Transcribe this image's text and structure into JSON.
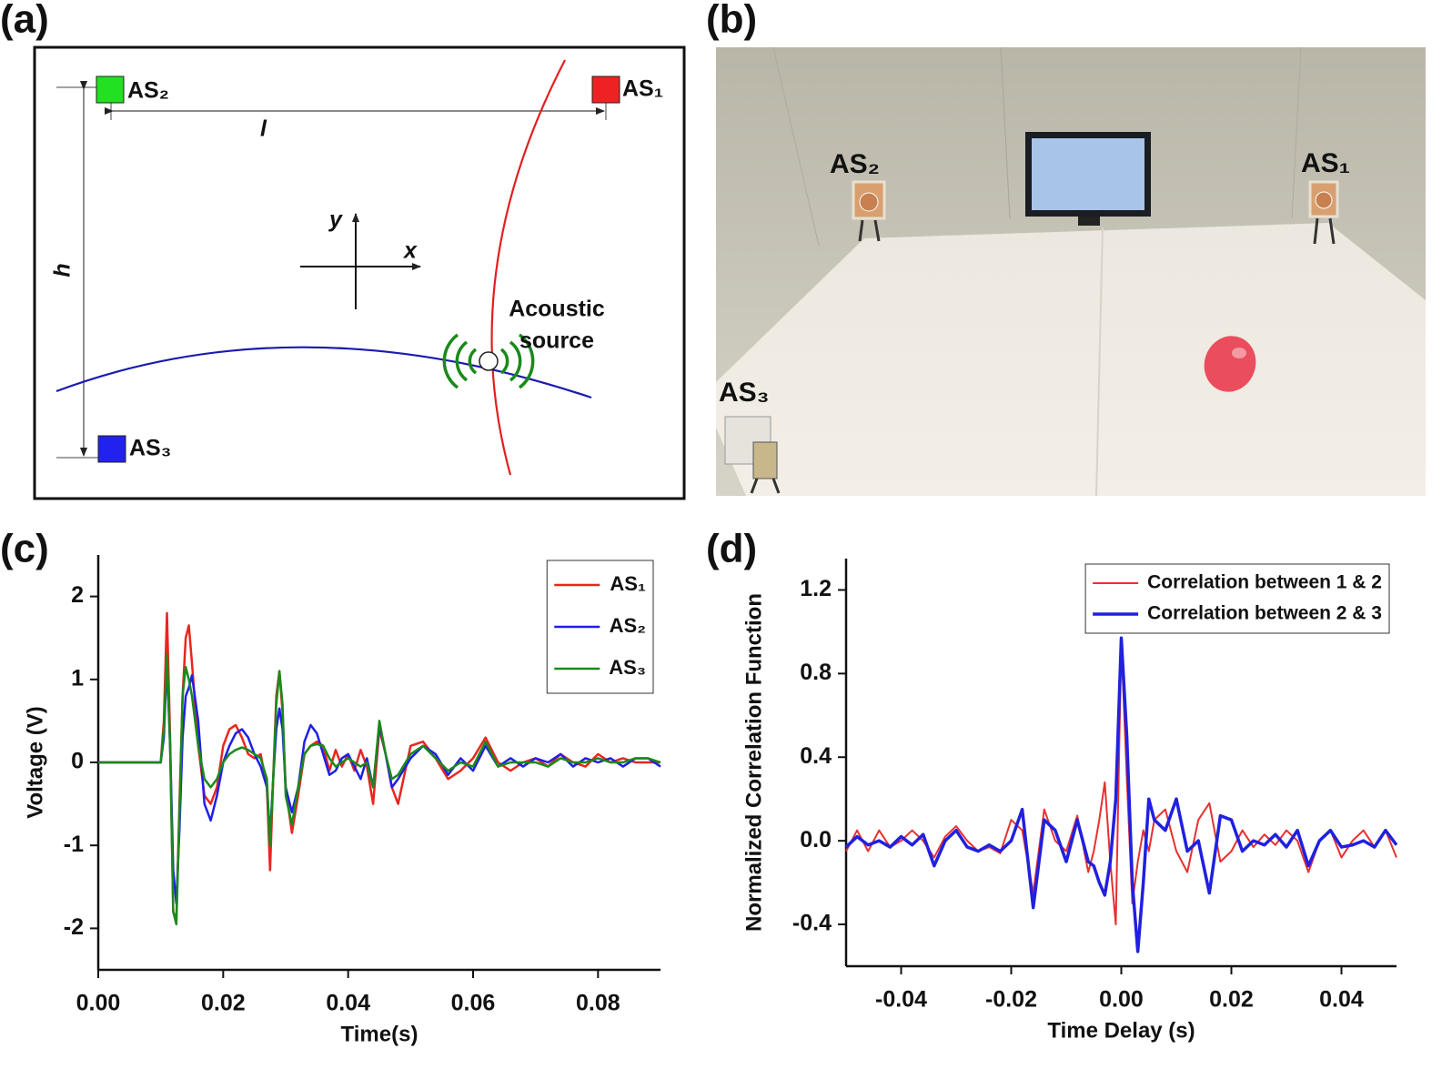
{
  "panel_labels": [
    "(a)",
    "(b)",
    "(c)",
    "(d)"
  ],
  "diagram": {
    "sensor_labels": [
      "AS₁",
      "AS₂",
      "AS₃"
    ],
    "width_label": "l",
    "height_label": "h",
    "y_axis": "y",
    "x_axis": "x",
    "source_label": [
      "Acoustic",
      "source"
    ]
  },
  "photo": {
    "sensor_labels": [
      "AS₁",
      "AS₂",
      "AS₃"
    ]
  },
  "chart_data": [
    {
      "type": "line",
      "xlabel": "Time(s)",
      "ylabel": "Voltage (V)",
      "legend": "upper right",
      "xlim": [
        0,
        0.09
      ],
      "ylim": [
        -2.5,
        2.5
      ],
      "xticks": [
        {
          "value": 0,
          "label": "0.00"
        },
        0.02,
        0.04,
        0.06,
        0.08
      ],
      "yticks": [
        -2,
        -1,
        0,
        1,
        2
      ],
      "x": [
        0,
        0.005,
        0.01,
        0.0105,
        0.011,
        0.0115,
        0.012,
        0.0125,
        0.013,
        0.0135,
        0.014,
        0.0145,
        0.015,
        0.016,
        0.017,
        0.018,
        0.019,
        0.02,
        0.021,
        0.022,
        0.023,
        0.024,
        0.025,
        0.026,
        0.027,
        0.0275,
        0.028,
        0.0285,
        0.029,
        0.0295,
        0.03,
        0.031,
        0.032,
        0.033,
        0.034,
        0.035,
        0.036,
        0.037,
        0.038,
        0.039,
        0.04,
        0.041,
        0.042,
        0.043,
        0.044,
        0.045,
        0.046,
        0.047,
        0.048,
        0.05,
        0.052,
        0.054,
        0.056,
        0.058,
        0.06,
        0.062,
        0.064,
        0.066,
        0.068,
        0.07,
        0.072,
        0.074,
        0.076,
        0.078,
        0.08,
        0.082,
        0.084,
        0.086,
        0.088,
        0.09
      ],
      "series": [
        {
          "name": "AS₁",
          "color": "#e8261f",
          "values": [
            0,
            0,
            0,
            0.5,
            1.8,
            0.3,
            -1.8,
            -1.9,
            -0.5,
            0.8,
            1.5,
            1.65,
            1.2,
            0.2,
            -0.4,
            -0.5,
            -0.3,
            0.2,
            0.4,
            0.45,
            0.3,
            0.1,
            0.05,
            0.1,
            -0.3,
            -1.3,
            -0.2,
            0.8,
            1.1,
            0.6,
            -0.3,
            -0.85,
            -0.4,
            0.1,
            0.2,
            0.25,
            0.2,
            -0.1,
            0.15,
            -0.05,
            0.1,
            -0.1,
            0.15,
            -0.05,
            -0.5,
            0.4,
            0.1,
            -0.3,
            -0.5,
            0.2,
            0.25,
            0.05,
            -0.2,
            -0.1,
            0.05,
            0.3,
            0.0,
            -0.1,
            0.0,
            0.05,
            -0.05,
            0.1,
            0.0,
            -0.05,
            0.1,
            0.0,
            0.05,
            0.0,
            0.0,
            0.0
          ]
        },
        {
          "name": "AS₂",
          "color": "#1f1fe8",
          "values": [
            0,
            0,
            0,
            0.3,
            1.2,
            0.2,
            -1.3,
            -1.7,
            -0.8,
            0.3,
            0.8,
            0.9,
            1.05,
            0.5,
            -0.5,
            -0.7,
            -0.4,
            0.0,
            0.2,
            0.35,
            0.4,
            0.3,
            0.1,
            -0.05,
            -0.3,
            -0.9,
            -0.2,
            0.4,
            0.65,
            0.4,
            -0.3,
            -0.6,
            -0.3,
            0.25,
            0.45,
            0.35,
            0.1,
            -0.15,
            -0.1,
            0.05,
            0.1,
            -0.05,
            -0.2,
            0.05,
            -0.3,
            0.45,
            0.1,
            -0.3,
            -0.2,
            0.05,
            0.2,
            0.1,
            -0.15,
            0.05,
            -0.1,
            0.2,
            -0.05,
            0.05,
            -0.05,
            0.05,
            0.0,
            0.1,
            -0.05,
            0.05,
            0.0,
            0.05,
            -0.05,
            0.05,
            0.05,
            -0.05
          ]
        },
        {
          "name": "AS₃",
          "color": "#1a8a1a",
          "values": [
            0,
            0,
            0,
            0.4,
            1.3,
            0.2,
            -1.8,
            -1.95,
            -0.6,
            0.8,
            1.15,
            1.0,
            0.8,
            0.2,
            -0.2,
            -0.3,
            -0.2,
            0.0,
            0.1,
            0.15,
            0.18,
            0.15,
            0.1,
            0.05,
            -0.2,
            -1.0,
            -0.2,
            0.7,
            1.1,
            0.7,
            -0.4,
            -0.75,
            -0.3,
            0.1,
            0.2,
            0.22,
            0.2,
            0.05,
            -0.05,
            0.0,
            0.05,
            0.0,
            -0.05,
            0.0,
            -0.3,
            0.5,
            0.1,
            -0.2,
            -0.15,
            0.1,
            0.2,
            0.05,
            -0.1,
            0.0,
            -0.05,
            0.25,
            -0.05,
            0.0,
            0.0,
            0.0,
            -0.05,
            0.05,
            0.0,
            0.0,
            0.05,
            0.0,
            0.0,
            0.05,
            0.05,
            0.0
          ]
        }
      ]
    },
    {
      "type": "line",
      "xlabel": "Time Delay (s)",
      "ylabel": "Normalized Correlation Function",
      "legend": "upper right",
      "xlim": [
        -0.05,
        0.05
      ],
      "ylim": [
        -0.6,
        1.35
      ],
      "xticks": [
        -0.04,
        -0.02,
        {
          "value": 0,
          "label": "0.00"
        },
        0.02,
        0.04
      ],
      "yticks": [
        -0.4,
        {
          "value": 0,
          "label": "0.0"
        },
        0.4,
        0.8,
        1.2
      ],
      "x": [
        -0.05,
        -0.048,
        -0.046,
        -0.044,
        -0.042,
        -0.04,
        -0.038,
        -0.036,
        -0.034,
        -0.032,
        -0.03,
        -0.028,
        -0.026,
        -0.024,
        -0.022,
        -0.02,
        -0.018,
        -0.016,
        -0.014,
        -0.012,
        -0.01,
        -0.008,
        -0.006,
        -0.005,
        -0.004,
        -0.003,
        -0.002,
        -0.001,
        0,
        0.001,
        0.002,
        0.003,
        0.004,
        0.005,
        0.006,
        0.008,
        0.01,
        0.012,
        0.014,
        0.016,
        0.018,
        0.02,
        0.022,
        0.024,
        0.026,
        0.028,
        0.03,
        0.032,
        0.034,
        0.036,
        0.038,
        0.04,
        0.042,
        0.044,
        0.046,
        0.048,
        0.05
      ],
      "series": [
        {
          "name": "Correlation between 1 & 2",
          "color": "#e83030",
          "values": [
            -0.05,
            0.05,
            -0.05,
            0.05,
            -0.03,
            0.0,
            0.05,
            0.0,
            -0.08,
            0.02,
            0.07,
            0.0,
            -0.05,
            -0.03,
            -0.06,
            0.1,
            0.05,
            -0.25,
            0.15,
            0.0,
            -0.05,
            0.12,
            -0.15,
            -0.05,
            0.1,
            0.28,
            -0.1,
            -0.4,
            0.95,
            0.3,
            -0.3,
            -0.1,
            0.05,
            -0.05,
            0.1,
            0.15,
            -0.05,
            -0.15,
            0.1,
            0.18,
            -0.1,
            -0.05,
            0.05,
            -0.03,
            0.03,
            -0.02,
            0.05,
            0.0,
            -0.15,
            0.0,
            0.05,
            -0.08,
            0.0,
            0.05,
            -0.03,
            0.05,
            -0.08
          ]
        },
        {
          "name": "Correlation between 2 & 3",
          "color": "#2020e0",
          "values": [
            -0.03,
            0.02,
            -0.02,
            0.0,
            -0.03,
            0.02,
            -0.02,
            0.03,
            -0.12,
            0.0,
            0.05,
            -0.03,
            -0.05,
            -0.02,
            -0.05,
            0.0,
            0.15,
            -0.32,
            0.1,
            0.05,
            -0.1,
            0.1,
            -0.1,
            -0.12,
            -0.2,
            -0.26,
            -0.1,
            0.2,
            0.97,
            0.5,
            -0.2,
            -0.53,
            -0.2,
            0.2,
            0.1,
            0.05,
            0.2,
            -0.05,
            0.0,
            -0.25,
            0.12,
            0.1,
            -0.05,
            0.0,
            -0.02,
            0.03,
            -0.03,
            0.05,
            -0.12,
            0.0,
            0.05,
            -0.03,
            -0.02,
            0.0,
            -0.03,
            0.05,
            -0.02
          ]
        }
      ]
    }
  ]
}
